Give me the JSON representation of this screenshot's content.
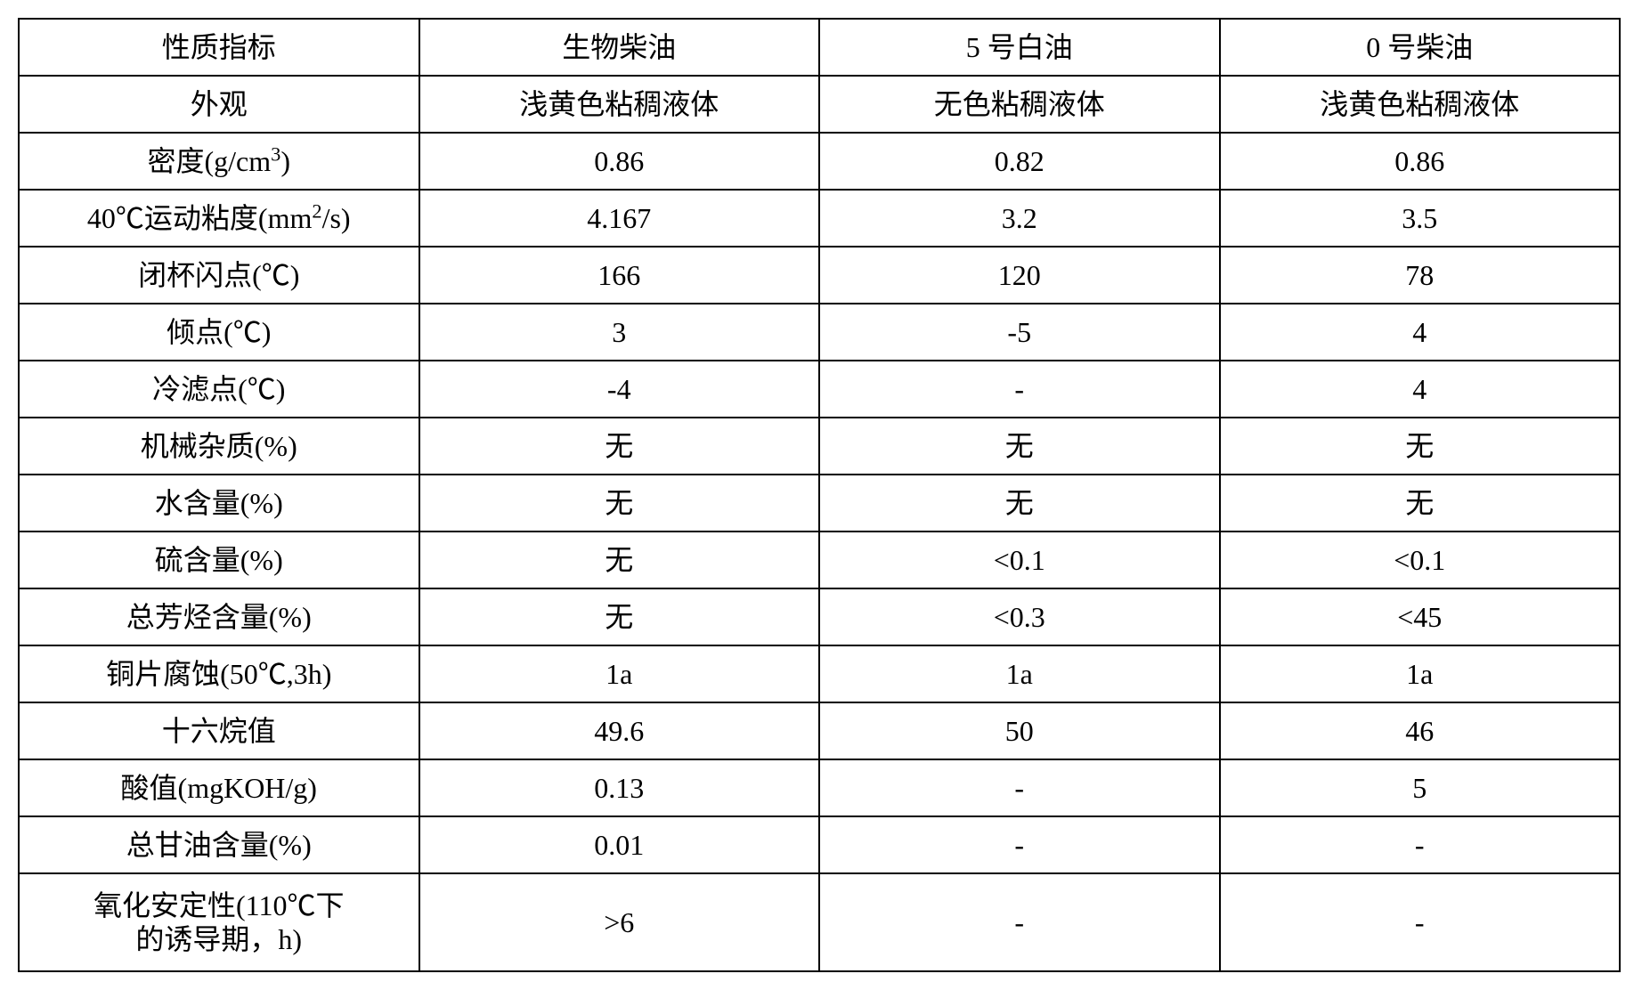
{
  "table": {
    "border_color": "#000000",
    "background_color": "#ffffff",
    "text_color": "#000000",
    "font_size_pt": 24,
    "columns": [
      {
        "key": "prop",
        "header": "性质指标"
      },
      {
        "key": "bio",
        "header": "生物柴油"
      },
      {
        "key": "oil5",
        "header": "5 号白油"
      },
      {
        "key": "oil0",
        "header": "0 号柴油"
      }
    ],
    "col_widths_pct": [
      25,
      25,
      25,
      25
    ],
    "rows": [
      {
        "prop_html": "外观",
        "bio": "浅黄色粘稠液体",
        "oil5": "无色粘稠液体",
        "oil0": "浅黄色粘稠液体"
      },
      {
        "prop_html": "密度(g/cm<sup>3</sup>)",
        "bio": "0.86",
        "oil5": "0.82",
        "oil0": "0.86"
      },
      {
        "prop_html": "40℃运动粘度(mm<sup>2</sup>/s)",
        "bio": "4.167",
        "oil5": "3.2",
        "oil0": "3.5"
      },
      {
        "prop_html": "闭杯闪点(℃)",
        "bio": "166",
        "oil5": "120",
        "oil0": "78"
      },
      {
        "prop_html": "倾点(℃)",
        "bio": "3",
        "oil5": "-5",
        "oil0": "4"
      },
      {
        "prop_html": "冷滤点(℃)",
        "bio": "-4",
        "oil5": "-",
        "oil0": "4"
      },
      {
        "prop_html": "机械杂质(%)",
        "bio": "无",
        "oil5": "无",
        "oil0": "无"
      },
      {
        "prop_html": "水含量(%)",
        "bio": "无",
        "oil5": "无",
        "oil0": "无"
      },
      {
        "prop_html": "硫含量(%)",
        "bio": "无",
        "oil5": "<0.1",
        "oil0": "<0.1"
      },
      {
        "prop_html": "总芳烃含量(%)",
        "bio": "无",
        "oil5": "<0.3",
        "oil0": "<45"
      },
      {
        "prop_html": "铜片腐蚀(50℃,3h)",
        "bio": "1a",
        "oil5": "1a",
        "oil0": "1a"
      },
      {
        "prop_html": "十六烷值",
        "bio": "49.6",
        "oil5": "50",
        "oil0": "46"
      },
      {
        "prop_html": "酸值(mgKOH/g)",
        "bio": "0.13",
        "oil5": "-",
        "oil0": "5"
      },
      {
        "prop_html": "总甘油含量(%)",
        "bio": "0.01",
        "oil5": "-",
        "oil0": "-"
      },
      {
        "prop_html": "氧化安定性(110℃下<br>的诱导期，h)",
        "bio": ">6",
        "oil5": "-",
        "oil0": "-",
        "tall": true
      }
    ]
  }
}
